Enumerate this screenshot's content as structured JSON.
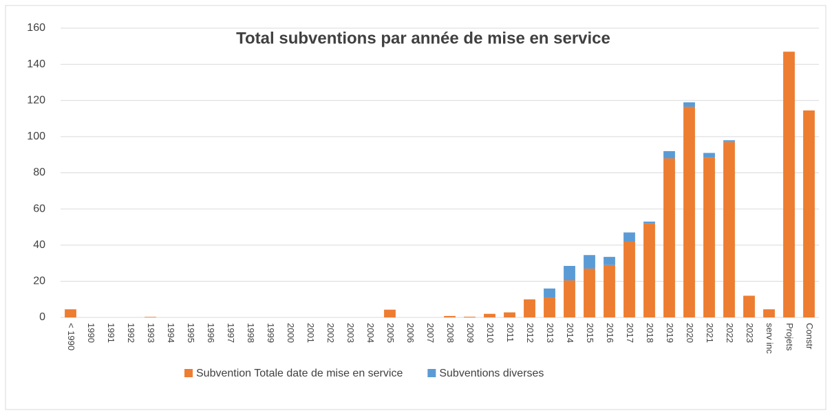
{
  "chart_data": {
    "type": "stacked_bar",
    "title": "Total subventions par année de mise en service",
    "categories": [
      "< 1990",
      "1990",
      "1991",
      "1992",
      "1993",
      "1994",
      "1995",
      "1996",
      "1997",
      "1998",
      "1999",
      "2000",
      "2001",
      "2002",
      "2003",
      "2004",
      "2005",
      "2006",
      "2007",
      "2008",
      "2009",
      "2010",
      "2011",
      "2012",
      "2013",
      "2014",
      "2015",
      "2016",
      "2017",
      "2018",
      "2019",
      "2020",
      "2021",
      "2022",
      "2023",
      "serv inc",
      "Projets",
      "Constr"
    ],
    "series": [
      {
        "name": "Subvention Totale date de mise en service",
        "color": "#ed7d31",
        "values": [
          4.5,
          0,
          0,
          0,
          0.3,
          0,
          0,
          0,
          0,
          0,
          0,
          0,
          0,
          0,
          0,
          0,
          4.3,
          0,
          0,
          0.8,
          0.4,
          2,
          2.8,
          10,
          11,
          20.5,
          27,
          29,
          42,
          52,
          88,
          116.5,
          88.5,
          97,
          12,
          4.5,
          147,
          114.5
        ]
      },
      {
        "name": "Subventions diverses",
        "color": "#5b9bd5",
        "values": [
          0,
          0,
          0,
          0,
          0,
          0,
          0,
          0,
          0,
          0,
          0,
          0,
          0,
          0,
          0,
          0,
          0,
          0,
          0,
          0,
          0,
          0,
          0,
          0,
          5,
          8,
          7.5,
          4.5,
          5,
          1,
          4,
          2.5,
          2.5,
          1,
          0,
          0,
          0,
          0
        ]
      }
    ],
    "ylim": [
      0,
      160
    ],
    "yticks": [
      0,
      20,
      40,
      60,
      80,
      100,
      120,
      140,
      160
    ],
    "grid": true,
    "legend": "bottom"
  }
}
